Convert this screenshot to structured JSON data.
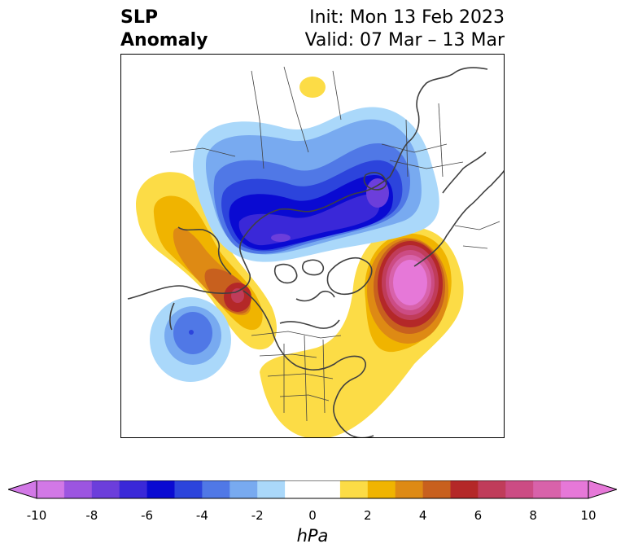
{
  "title": {
    "left_line1": "SLP",
    "left_line2": "Anomaly",
    "init": "Init: Mon 13 Feb 2023",
    "valid": "Valid: 07 Mar – 13 Mar"
  },
  "colorbar": {
    "unit": "hPa",
    "tick_labels": [
      "-10",
      "-8",
      "-6",
      "-4",
      "-2",
      "0",
      "2",
      "4",
      "6",
      "8",
      "10"
    ],
    "bins": [
      {
        "range": "-10 to -9",
        "color": "#d278e6"
      },
      {
        "range": "-9 to -8",
        "color": "#9c55e0"
      },
      {
        "range": "-8 to -7",
        "color": "#6c3edb"
      },
      {
        "range": "-7 to -6",
        "color": "#3a28d8"
      },
      {
        "range": "-6 to -5",
        "color": "#0a0ad2"
      },
      {
        "range": "-5 to -4",
        "color": "#2c44dc"
      },
      {
        "range": "-4 to -3",
        "color": "#5078e6"
      },
      {
        "range": "-3 to -2",
        "color": "#78aaf0"
      },
      {
        "range": "-2 to -1",
        "color": "#aad8fa"
      },
      {
        "range": "-1 to 1",
        "color": "#ffffff"
      },
      {
        "range": "1 to 2",
        "color": "#fcdc46"
      },
      {
        "range": "2 to 3",
        "color": "#f0b400"
      },
      {
        "range": "3 to 4",
        "color": "#de8a14"
      },
      {
        "range": "4 to 5",
        "color": "#c8601e"
      },
      {
        "range": "5 to 6",
        "color": "#b42828"
      },
      {
        "range": "6 to 7",
        "color": "#c03c5a"
      },
      {
        "range": "7 to 8",
        "color": "#cc4c84"
      },
      {
        "range": "8 to 9",
        "color": "#d862aa"
      },
      {
        "range": "9 to 10",
        "color": "#e678d8"
      }
    ],
    "extend": "both"
  },
  "map": {
    "projection": "north-polar stereographic",
    "region": "Northern Hemisphere (North America, Arctic, Eurasia)"
  }
}
